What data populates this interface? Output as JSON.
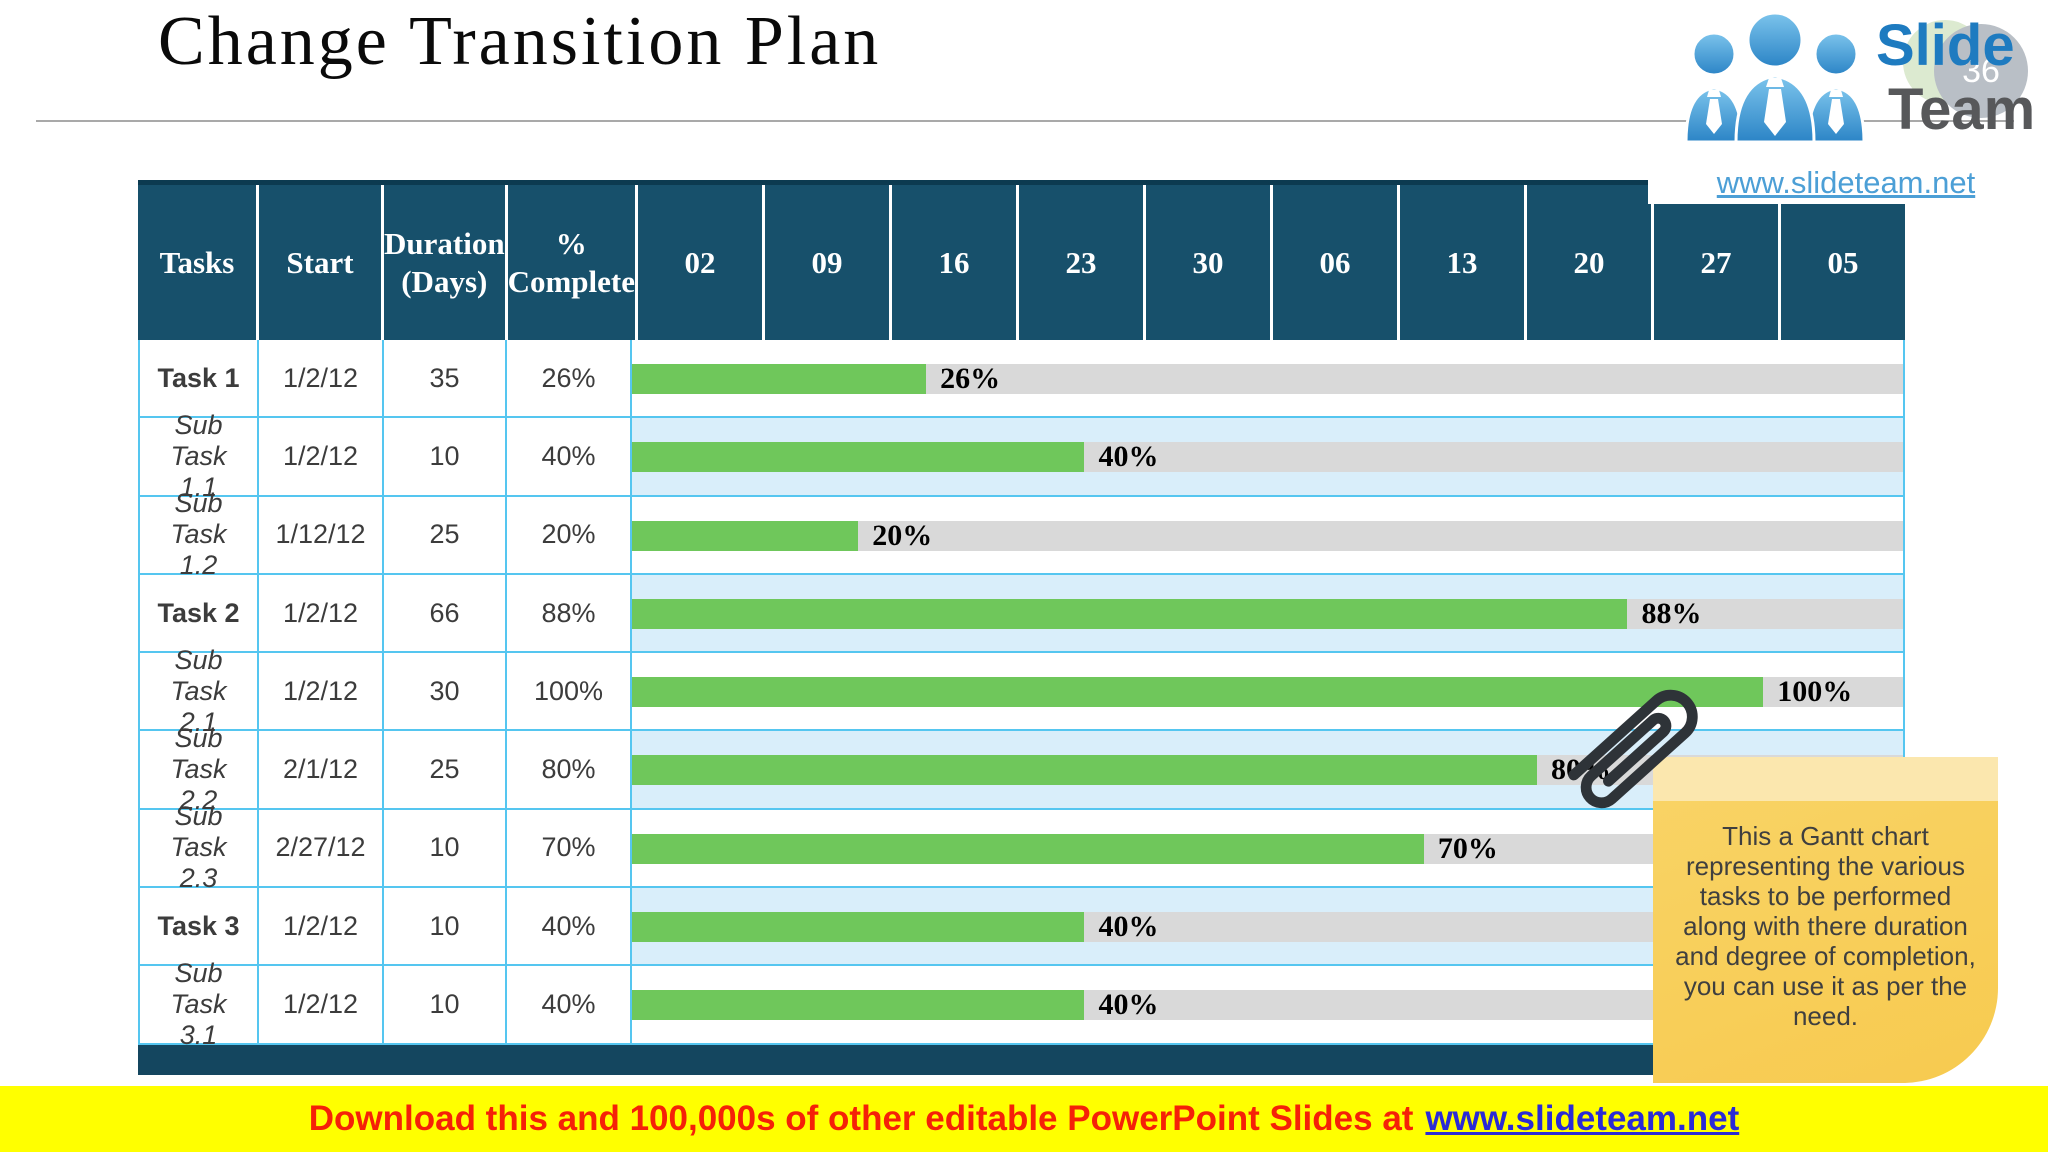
{
  "slide": {
    "title": "Change Transition Plan",
    "page_number": "36"
  },
  "logo": {
    "brand_top": "Slide",
    "brand_bottom": "Team",
    "url": "www.slideteam.net"
  },
  "table": {
    "headers": [
      "Tasks",
      "Start",
      "Duration\n(Days)",
      "%\nComplete"
    ],
    "date_columns": [
      "02",
      "09",
      "16",
      "23",
      "30",
      "06",
      "13",
      "20",
      "27",
      "05"
    ],
    "rows": [
      {
        "task": "Task 1",
        "style": "task",
        "start": "1/2/12",
        "duration": "35",
        "complete": "26%",
        "pct": 26,
        "alt": false
      },
      {
        "task": "Sub Task 1.1",
        "style": "subtask",
        "start": "1/2/12",
        "duration": "10",
        "complete": "40%",
        "pct": 40,
        "alt": true
      },
      {
        "task": "Sub Task 1.2",
        "style": "subtask",
        "start": "1/12/12",
        "duration": "25",
        "complete": "20%",
        "pct": 20,
        "alt": false
      },
      {
        "task": "Task 2",
        "style": "task",
        "start": "1/2/12",
        "duration": "66",
        "complete": "88%",
        "pct": 88,
        "alt": true
      },
      {
        "task": "Sub Task 2.1",
        "style": "subtask",
        "start": "1/2/12",
        "duration": "30",
        "complete": "100%",
        "pct": 100,
        "alt": false
      },
      {
        "task": "Sub Task 2.2",
        "style": "subtask",
        "start": "2/1/12",
        "duration": "25",
        "complete": "80%",
        "pct": 80,
        "alt": true
      },
      {
        "task": "Sub Task 2.3",
        "style": "subtask",
        "start": "2/27/12",
        "duration": "10",
        "complete": "70%",
        "pct": 70,
        "alt": false
      },
      {
        "task": "Task 3",
        "style": "task",
        "start": "1/2/12",
        "duration": "10",
        "complete": "40%",
        "pct": 40,
        "alt": true
      },
      {
        "task": "Sub Task 3.1",
        "style": "subtask",
        "start": "1/2/12",
        "duration": "10",
        "complete": "40%",
        "pct": 40,
        "alt": false
      }
    ]
  },
  "note": {
    "text": "This a Gantt chart representing the various tasks to be performed along with there duration and degree of completion, you can use it as per the need."
  },
  "banner": {
    "text_red": "Download this and 100,000s of other editable PowerPoint Slides at",
    "link": "www.slideteam.net"
  },
  "colors": {
    "header_teal": "#17506b",
    "bottom_bar_teal": "#14465f",
    "bar_green": "#6fc75b",
    "track_gray": "#d9d9d9",
    "row_blue": "#d9eefa",
    "border_cyan": "#55c6f0",
    "note_gold": "#f8ce5c",
    "banner_yellow": "#ffff00",
    "banner_red": "#f52108",
    "link_blue": "#2b2bd5"
  },
  "chart_data": {
    "type": "table",
    "title": "Change Transition Plan",
    "columns": [
      "Tasks",
      "Start",
      "Duration (Days)",
      "% Complete"
    ],
    "timeline_tick_labels": [
      "02",
      "09",
      "16",
      "23",
      "30",
      "06",
      "13",
      "20",
      "27",
      "05"
    ],
    "rows": [
      [
        "Task 1",
        "1/2/12",
        35,
        26
      ],
      [
        "Sub Task 1.1",
        "1/2/12",
        10,
        40
      ],
      [
        "Sub Task 1.2",
        "1/12/12",
        25,
        20
      ],
      [
        "Task 2",
        "1/2/12",
        66,
        88
      ],
      [
        "Sub Task 2.1",
        "1/2/12",
        30,
        100
      ],
      [
        "Sub Task 2.2",
        "2/1/12",
        25,
        80
      ],
      [
        "Sub Task 2.3",
        "2/27/12",
        10,
        70
      ],
      [
        "Task 3",
        "1/2/12",
        10,
        40
      ],
      [
        "Sub Task 3.1",
        "1/2/12",
        10,
        40
      ]
    ],
    "bar_value_unit": "percent_complete",
    "legend": "off",
    "grid": "off"
  }
}
